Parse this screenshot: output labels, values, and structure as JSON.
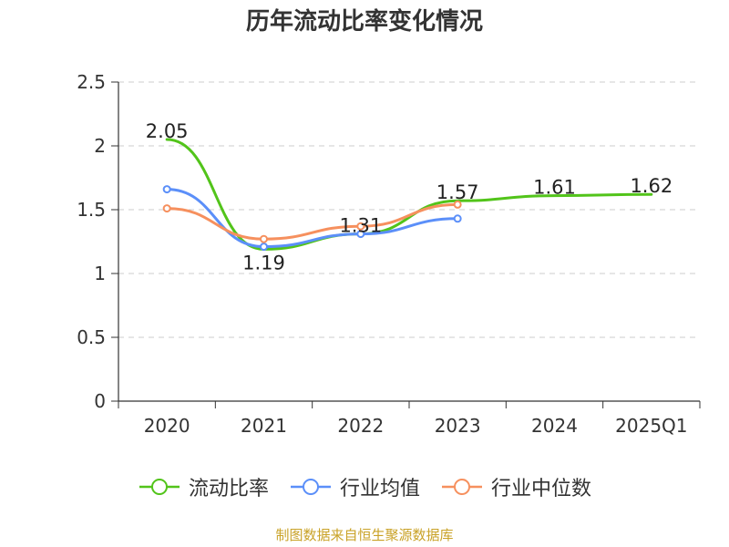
{
  "chart_data": {
    "type": "line",
    "title": "历年流动比率变化情况",
    "categories": [
      "2020",
      "2021",
      "2022",
      "2023",
      "2024",
      "2025Q1"
    ],
    "ylim": [
      0,
      2.5
    ],
    "yticks": [
      "0",
      "0.5",
      "1",
      "1.5",
      "2",
      "2.5"
    ],
    "grid": true,
    "legend_position": "bottom",
    "series": [
      {
        "name": "流动比率",
        "color": "#52c41a",
        "values": [
          2.05,
          1.19,
          1.31,
          1.57,
          1.61,
          1.62
        ],
        "labels": [
          "2.05",
          "1.19",
          "1.31",
          "1.57",
          "1.61",
          "1.62"
        ]
      },
      {
        "name": "行业均值",
        "color": "#5b8ff9",
        "values": [
          1.66,
          1.21,
          1.31,
          1.43,
          null,
          null
        ]
      },
      {
        "name": "行业中位数",
        "color": "#f6905e",
        "values": [
          1.51,
          1.27,
          1.37,
          1.54,
          null,
          null
        ]
      }
    ]
  },
  "source": "制图数据来自恒生聚源数据库"
}
